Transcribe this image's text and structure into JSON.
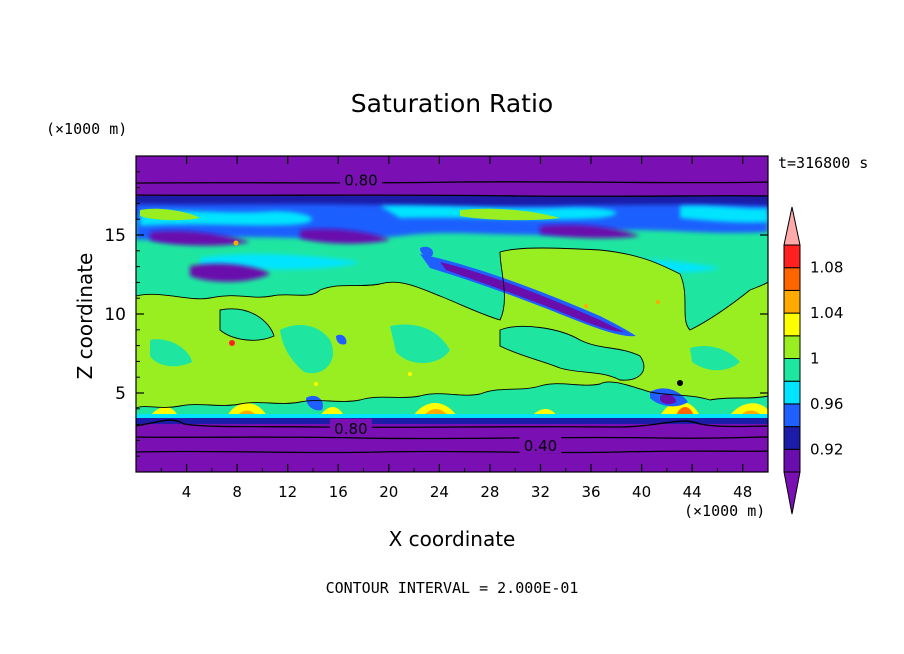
{
  "chart_data": {
    "type": "heatmap",
    "title": "Saturation Ratio",
    "xlabel": "X coordinate",
    "ylabel": "Z coordinate",
    "x_unit": "(×1000 m)",
    "y_unit": "(×1000 m)",
    "time_label": "t=316800 s",
    "footer": "CONTOUR INTERVAL = 2.000E-01",
    "xlim": [
      0,
      50
    ],
    "ylim": [
      0,
      20
    ],
    "x_ticks": [
      4,
      8,
      12,
      16,
      20,
      24,
      28,
      32,
      36,
      40,
      44,
      48
    ],
    "y_ticks": [
      5,
      10,
      15
    ],
    "contour_labels": [
      {
        "text": "0.80",
        "x": 17.8,
        "z": 18.5
      },
      {
        "text": "0.80",
        "x": 17.0,
        "z": 2.8
      },
      {
        "text": "0.40",
        "x": 32.0,
        "z": 1.7
      }
    ],
    "colorbar": {
      "levels": [
        0.9,
        0.92,
        0.94,
        0.96,
        0.98,
        1.0,
        1.02,
        1.04,
        1.06,
        1.08,
        1.1
      ],
      "tick_labels": [
        {
          "value": 0.92,
          "text": "0.92"
        },
        {
          "value": 0.96,
          "text": "0.96"
        },
        {
          "value": 1.0,
          "text": "1"
        },
        {
          "value": 1.04,
          "text": "1.04"
        },
        {
          "value": 1.08,
          "text": "1.08"
        }
      ],
      "colors": [
        "#6a0dad",
        "#1c1ca8",
        "#1f5fff",
        "#00e4ff",
        "#1ee6a0",
        "#99ee22",
        "#ffff00",
        "#ffaa00",
        "#ff6600",
        "#ff2020"
      ],
      "under_color": "#7a10b4",
      "over_color": "#ffaaaa"
    }
  }
}
